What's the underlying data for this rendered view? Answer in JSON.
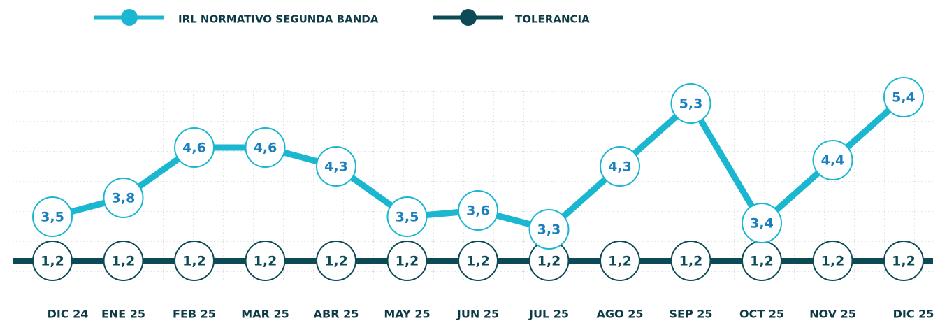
{
  "chart_data": {
    "type": "line",
    "categories": [
      "DIC 24",
      "ENE 25",
      "FEB 25",
      "MAR 25",
      "ABR 25",
      "MAY 25",
      "JUN 25",
      "JUL 25",
      "AGO 25",
      "SEP 25",
      "OCT 25",
      "NOV 25",
      "DIC 25"
    ],
    "series": [
      {
        "name": "IRL NORMATIVO SEGUNDA BANDA",
        "color": "#1bb7d0",
        "values": [
          3.5,
          3.8,
          4.6,
          4.6,
          4.3,
          3.5,
          3.6,
          3.3,
          4.3,
          5.3,
          3.4,
          4.4,
          5.4
        ],
        "value_labels": [
          "3,5",
          "3,8",
          "4,6",
          "4,6",
          "4,3",
          "3,5",
          "3,6",
          "3,3",
          "4,3",
          "5,3",
          "3,4",
          "4,4",
          "5,4"
        ]
      },
      {
        "name": "TOLERANCIA",
        "color": "#0c4a55",
        "axis": "y2",
        "values": [
          1.2,
          1.2,
          1.2,
          1.2,
          1.2,
          1.2,
          1.2,
          1.2,
          1.2,
          1.2,
          1.2,
          1.2,
          1.2
        ],
        "value_labels": [
          "1,2",
          "1,2",
          "1,2",
          "1,2",
          "1,2",
          "1,2",
          "1,2",
          "1,2",
          "1,2",
          "1,2",
          "1,2",
          "1,2",
          "1,2"
        ]
      }
    ],
    "ylim": [
      2.5,
      5.5
    ],
    "y2lim": [
      0,
      12
    ],
    "legend": "top"
  }
}
